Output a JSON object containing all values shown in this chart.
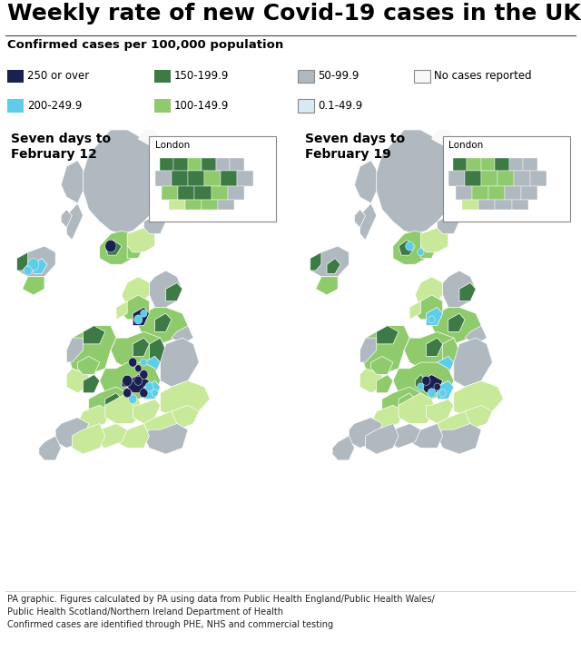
{
  "title": "Weekly rate of new Covid-19 cases in the UK",
  "subtitle": "Confirmed cases per 100,000 population",
  "map1_title": "Seven days to\nFebruary 12",
  "map2_title": "Seven days to\nFebruary 19",
  "background_color": "#cde4f0",
  "map_bg": "#cde4f0",
  "white": "#ffffff",
  "footer_line1": "PA graphic. Figures calculated by PA using data from Public Health England/Public Health Wales/",
  "footer_line2": "Public Health Scotland/Northern Ireland Department of Health",
  "footer_line3": "Confirmed cases are identified through PHE, NHS and commercial testing",
  "title_fontsize": 18,
  "subtitle_fontsize": 9.5,
  "legend_fontsize": 8.5,
  "map_title_fontsize": 10,
  "footer_fontsize": 7,
  "colors": {
    "navy": "#1a2050",
    "cyan": "#5ecde8",
    "dark_green": "#3d7a45",
    "light_green": "#8fca6c",
    "pale_green": "#c8e89a",
    "gray": "#b0b8c0",
    "pale_blue": "#d8eaf5",
    "white": "#f8f8f8",
    "sea": "#cde4f0"
  },
  "legend_rows": [
    [
      {
        "label": "250 or over",
        "color": "#1a2050"
      },
      {
        "label": "150-199.9",
        "color": "#3d7a45"
      },
      {
        "label": "50-99.9",
        "color": "#b0b8c0"
      },
      {
        "label": "No cases reported",
        "color": "#f8f8f8"
      }
    ],
    [
      {
        "label": "200-249.9",
        "color": "#5ecde8"
      },
      {
        "label": "100-149.9",
        "color": "#8fca6c"
      },
      {
        "label": "0.1-49.9",
        "color": "#d8eaf5"
      },
      {
        "label": "",
        "color": ""
      }
    ]
  ]
}
